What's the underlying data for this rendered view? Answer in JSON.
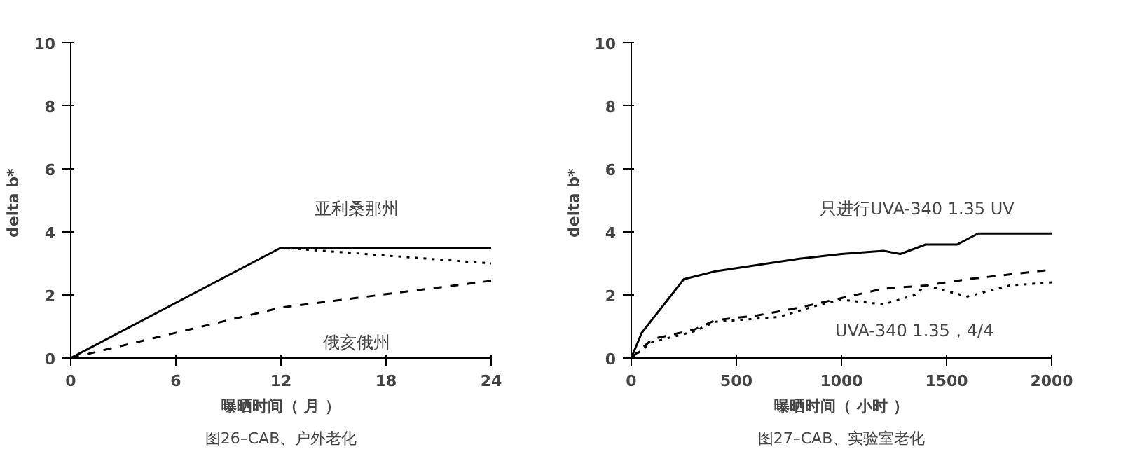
{
  "chart_data": [
    {
      "type": "line",
      "xlabel": "曝晒时间（ 月 ）",
      "ylabel": "delta  b*",
      "xlim": [
        0,
        24
      ],
      "xticks": [
        0,
        6,
        12,
        18,
        24
      ],
      "ylim": [
        0,
        10
      ],
      "yticks": [
        0,
        2,
        4,
        6,
        8,
        10
      ],
      "grid": false,
      "series": [
        {
          "name": "亚利桑那州",
          "color": "#000000",
          "line_style": "solid",
          "x": [
            0,
            12,
            24
          ],
          "values": [
            0,
            3.5,
            3.5
          ]
        },
        {
          "color": "#000000",
          "line_style": "dotted",
          "x": [
            12,
            24
          ],
          "values": [
            3.5,
            3.0
          ]
        },
        {
          "name": "俄亥俄州",
          "color": "#000000",
          "line_style": "dashed",
          "x": [
            0,
            12,
            24
          ],
          "values": [
            0,
            1.6,
            2.45
          ]
        }
      ],
      "annotations": [
        "图26–CAB、户外老化"
      ]
    },
    {
      "type": "line",
      "xlabel": "曝晒时间（ 小时 ）",
      "ylabel": "delta  b*",
      "xlim": [
        0,
        2000
      ],
      "xticks": [
        0,
        500,
        1000,
        1500,
        2000
      ],
      "ylim": [
        0,
        10
      ],
      "yticks": [
        0,
        2,
        4,
        6,
        8,
        10
      ],
      "grid": false,
      "series": [
        {
          "name": "只进行UVA-340 1.35 UV",
          "color": "#000000",
          "line_style": "solid",
          "x": [
            0,
            50,
            250,
            400,
            600,
            800,
            1000,
            1200,
            1280,
            1400,
            1550,
            1650,
            2000
          ],
          "values": [
            0,
            0.8,
            2.5,
            2.75,
            2.95,
            3.15,
            3.3,
            3.4,
            3.3,
            3.6,
            3.6,
            3.95,
            3.95
          ]
        },
        {
          "name": "UVA-340  1.35，4/4",
          "color": "#000000",
          "line_style": "dashed",
          "x": [
            0,
            100,
            300,
            400,
            600,
            800,
            1000,
            1200,
            1400,
            1600,
            1800,
            2000
          ],
          "values": [
            0,
            0.6,
            0.9,
            1.2,
            1.35,
            1.6,
            1.9,
            2.2,
            2.3,
            2.5,
            2.65,
            2.8
          ]
        },
        {
          "color": "#000000",
          "line_style": "dotted",
          "x": [
            0,
            100,
            300,
            400,
            500,
            700,
            900,
            1000,
            1200,
            1350,
            1400,
            1600,
            1800,
            2000
          ],
          "values": [
            0,
            0.5,
            0.85,
            1.15,
            1.2,
            1.3,
            1.7,
            1.85,
            1.7,
            2.0,
            2.3,
            1.95,
            2.3,
            2.4
          ]
        }
      ],
      "annotations": [
        "图27–CAB、实验室老化"
      ]
    }
  ]
}
